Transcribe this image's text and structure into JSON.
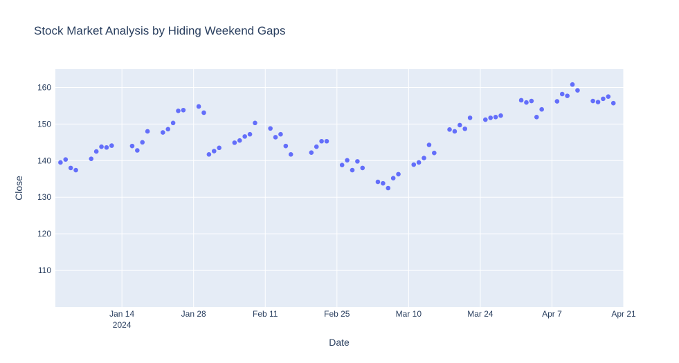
{
  "chart_data": {
    "type": "scatter",
    "title": "Stock Market Analysis by Hiding Weekend Gaps",
    "xlabel": "Date",
    "ylabel": "Close",
    "xlim": [
      "2024-01-01",
      "2024-04-21"
    ],
    "ylim": [
      100,
      165
    ],
    "x_ticks": [
      {
        "date": "2024-01-14",
        "label": "Jan 14",
        "sublabel": "2024"
      },
      {
        "date": "2024-01-28",
        "label": "Jan 28"
      },
      {
        "date": "2024-02-11",
        "label": "Feb 11"
      },
      {
        "date": "2024-02-25",
        "label": "Feb 25"
      },
      {
        "date": "2024-03-10",
        "label": "Mar 10"
      },
      {
        "date": "2024-03-24",
        "label": "Mar 24"
      },
      {
        "date": "2024-04-07",
        "label": "Apr 7"
      },
      {
        "date": "2024-04-21",
        "label": "Apr 21"
      }
    ],
    "y_ticks": [
      110,
      120,
      130,
      140,
      150,
      160
    ],
    "grid": true,
    "marker_color": "#636efa",
    "plot_bgcolor": "#e5ecf6",
    "series": [
      {
        "x": [
          "2024-01-02",
          "2024-01-03",
          "2024-01-04",
          "2024-01-05",
          "2024-01-08",
          "2024-01-09",
          "2024-01-10",
          "2024-01-11",
          "2024-01-12",
          "2024-01-16",
          "2024-01-17",
          "2024-01-18",
          "2024-01-19",
          "2024-01-22",
          "2024-01-23",
          "2024-01-24",
          "2024-01-25",
          "2024-01-26",
          "2024-01-29",
          "2024-01-30",
          "2024-01-31",
          "2024-02-01",
          "2024-02-02",
          "2024-02-05",
          "2024-02-06",
          "2024-02-07",
          "2024-02-08",
          "2024-02-09",
          "2024-02-12",
          "2024-02-13",
          "2024-02-14",
          "2024-02-15",
          "2024-02-16",
          "2024-02-20",
          "2024-02-21",
          "2024-02-22",
          "2024-02-23",
          "2024-02-26",
          "2024-02-27",
          "2024-02-28",
          "2024-02-29",
          "2024-03-01",
          "2024-03-04",
          "2024-03-05",
          "2024-03-06",
          "2024-03-07",
          "2024-03-08",
          "2024-03-11",
          "2024-03-12",
          "2024-03-13",
          "2024-03-14",
          "2024-03-15",
          "2024-03-18",
          "2024-03-19",
          "2024-03-20",
          "2024-03-21",
          "2024-03-22",
          "2024-03-25",
          "2024-03-26",
          "2024-03-27",
          "2024-03-28",
          "2024-04-01",
          "2024-04-02",
          "2024-04-03",
          "2024-04-04",
          "2024-04-05",
          "2024-04-08",
          "2024-04-09",
          "2024-04-10",
          "2024-04-11",
          "2024-04-12",
          "2024-04-15",
          "2024-04-16",
          "2024-04-17",
          "2024-04-18",
          "2024-04-19"
        ],
        "y": [
          139.5,
          140.3,
          138.0,
          137.4,
          140.5,
          142.5,
          143.8,
          143.6,
          144.1,
          144.0,
          142.8,
          145.0,
          148.0,
          147.7,
          148.6,
          150.3,
          153.6,
          153.8,
          154.8,
          153.1,
          141.7,
          142.6,
          143.5,
          144.9,
          145.5,
          146.6,
          147.2,
          150.3,
          148.8,
          146.4,
          147.2,
          144.0,
          141.7,
          142.2,
          143.8,
          145.3,
          145.3,
          138.8,
          140.1,
          137.4,
          139.8,
          138.0,
          134.2,
          133.8,
          132.5,
          135.2,
          136.3,
          138.9,
          139.5,
          140.7,
          144.3,
          142.1,
          148.5,
          148.0,
          149.7,
          148.7,
          151.7,
          151.2,
          151.7,
          151.9,
          152.3,
          156.5,
          155.9,
          156.3,
          151.9,
          154.0,
          156.2,
          158.2,
          157.7,
          160.8,
          159.2,
          156.3,
          156.0,
          156.9,
          157.5,
          155.7
        ]
      }
    ]
  }
}
